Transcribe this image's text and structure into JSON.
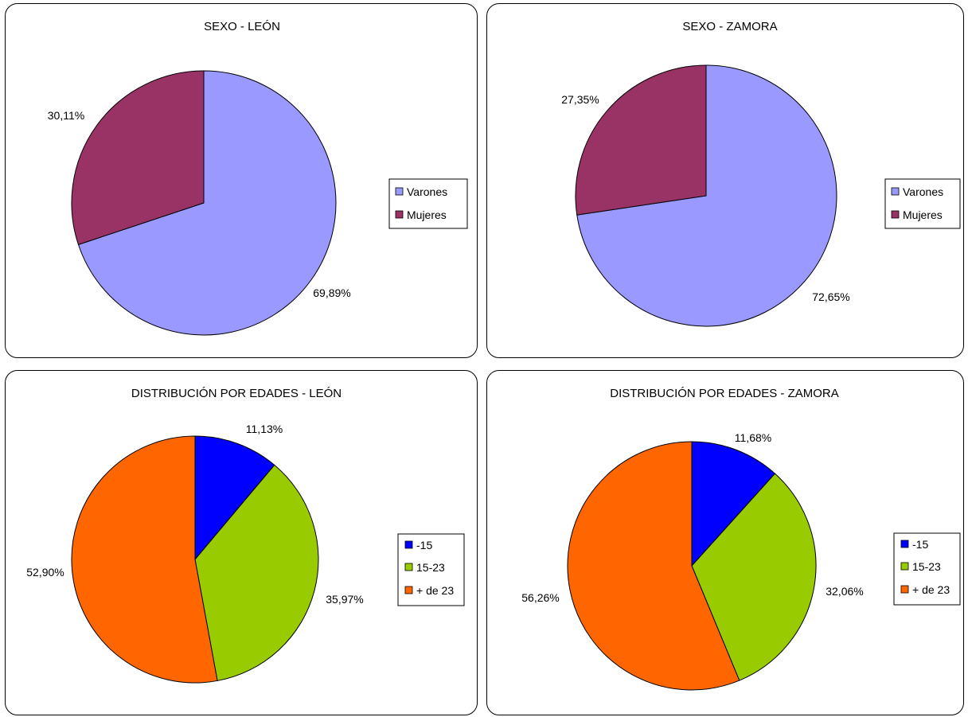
{
  "chart_data": [
    {
      "type": "pie",
      "title": "SEXO - LEÓN",
      "categories": [
        "Varones",
        "Mujeres"
      ],
      "values": [
        69.89,
        30.11
      ],
      "labels": [
        "69,89%",
        "30,11%"
      ],
      "colors": [
        "#9999FF",
        "#993366"
      ],
      "legend": "right"
    },
    {
      "type": "pie",
      "title": "SEXO - ZAMORA",
      "categories": [
        "Varones",
        "Mujeres"
      ],
      "values": [
        72.65,
        27.35
      ],
      "labels": [
        "72,65%",
        "27,35%"
      ],
      "colors": [
        "#9999FF",
        "#993366"
      ],
      "legend": "right"
    },
    {
      "type": "pie",
      "title": "DISTRIBUCIÓN POR EDADES - LEÓN",
      "categories": [
        "-15",
        "15-23",
        "+ de 23"
      ],
      "values": [
        11.13,
        35.97,
        52.9
      ],
      "labels": [
        "11,13%",
        "35,97%",
        "52,90%"
      ],
      "colors": [
        "#0000FF",
        "#99CC00",
        "#FF6600"
      ],
      "legend": "right"
    },
    {
      "type": "pie",
      "title": "DISTRIBUCIÓN POR EDADES - ZAMORA",
      "categories": [
        "-15",
        "15-23",
        "+ de 23"
      ],
      "values": [
        11.68,
        32.06,
        56.26
      ],
      "labels": [
        "11,68%",
        "32,06%",
        "56,26%"
      ],
      "colors": [
        "#0000FF",
        "#99CC00",
        "#FF6600"
      ],
      "legend": "right"
    }
  ]
}
